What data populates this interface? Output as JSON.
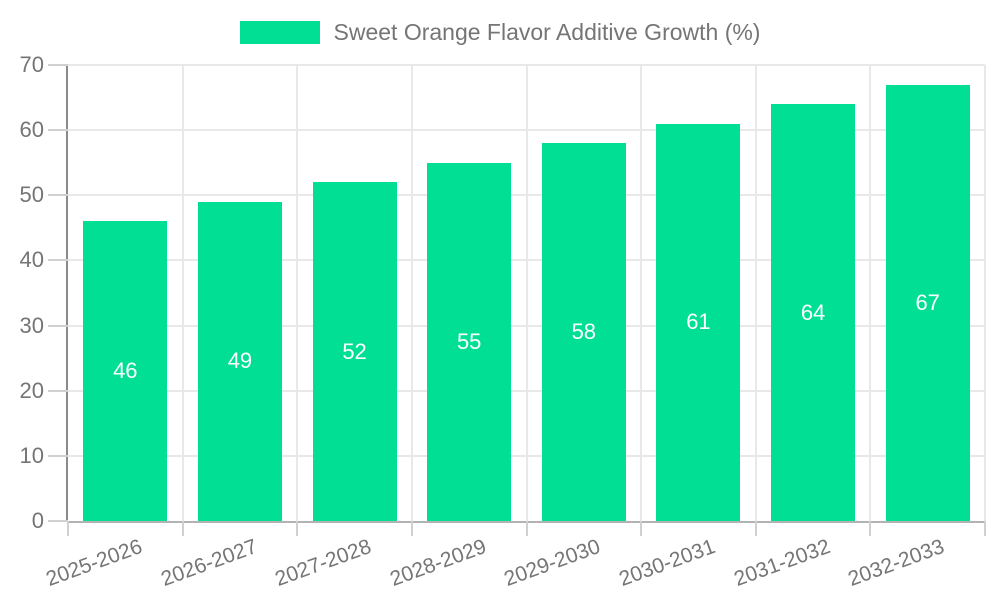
{
  "legend": {
    "label": "Sweet Orange Flavor Additive Growth (%)"
  },
  "chart_data": {
    "type": "bar",
    "title": "Sweet Orange Flavor Additive Growth (%)",
    "categories": [
      "2025-2026",
      "2026-2027",
      "2027-2028",
      "2028-2029",
      "2029-2030",
      "2030-2031",
      "2031-2032",
      "2032-2033"
    ],
    "values": [
      46,
      49,
      52,
      55,
      58,
      61,
      64,
      67
    ],
    "value_labels": [
      "46",
      "49",
      "52",
      "55",
      "58",
      "61",
      "64",
      "67"
    ],
    "xlabel": "",
    "ylabel": "",
    "ylim": [
      0,
      70
    ],
    "yticks": [
      0,
      10,
      20,
      30,
      40,
      50,
      60,
      70
    ],
    "grid": true,
    "legend_position": "top-center",
    "colors": {
      "bar": "#00DF94",
      "value_label": "#ffffff",
      "axis_text": "#757575",
      "gridline": "#e8e8e8",
      "axis_line": "#8a8a8a",
      "baseline": "#b3b3b3",
      "tick_mark": "#d0d0d0",
      "background": "#ffffff"
    }
  }
}
